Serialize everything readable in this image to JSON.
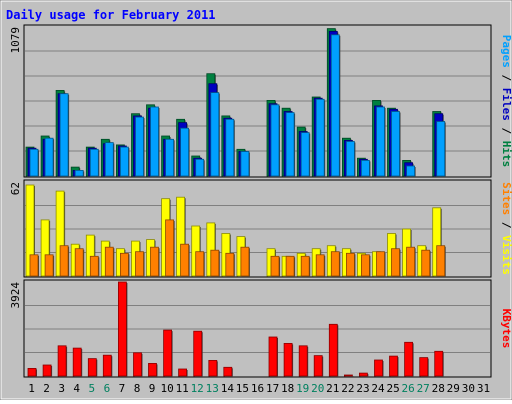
{
  "chart_data": {
    "type": "bar",
    "title": "Daily usage for February 2011",
    "categories": [
      "1",
      "2",
      "3",
      "4",
      "5",
      "6",
      "7",
      "8",
      "9",
      "10",
      "11",
      "12",
      "13",
      "14",
      "15",
      "16",
      "17",
      "18",
      "19",
      "20",
      "21",
      "22",
      "23",
      "24",
      "25",
      "26",
      "27",
      "28",
      "29",
      "30",
      "31"
    ],
    "weekend_days": [
      "5",
      "6",
      "12",
      "13",
      "19",
      "20",
      "26",
      "27"
    ],
    "grid": true,
    "panels": [
      {
        "ymax_label": "1079",
        "ylim": [
          0,
          1079
        ],
        "series": [
          {
            "name": "Hits",
            "color": "#008040",
            "values": [
              208,
              288,
              616,
              64,
              208,
              264,
              224,
              448,
              512,
              288,
              408,
              144,
              736,
              432,
              192,
              0,
              544,
              488,
              352,
              568,
              1060,
              272,
              128,
              544,
              488,
              112,
              0,
              464,
              0,
              0,
              0
            ]
          },
          {
            "name": "Files",
            "color": "#0000c0",
            "values": [
              200,
              264,
              592,
              40,
              200,
              232,
              216,
              432,
              488,
              264,
              384,
              128,
              664,
              416,
              176,
              0,
              520,
              464,
              320,
              560,
              1040,
              256,
              120,
              504,
              480,
              96,
              0,
              448,
              0,
              0,
              0
            ]
          },
          {
            "name": "Pages",
            "color": "#00a0ff",
            "values": [
              192,
              272,
              592,
              40,
              192,
              240,
              208,
              424,
              496,
              264,
              344,
              120,
              600,
              408,
              176,
              0,
              512,
              456,
              312,
              552,
              1016,
              248,
              112,
              496,
              464,
              72,
              0,
              392,
              0,
              0,
              0
            ]
          }
        ],
        "right_label": [
          "Pages",
          "Files",
          "Hits"
        ],
        "right_label_colors": [
          "#00a0ff",
          "#0000c0",
          "#008040"
        ]
      },
      {
        "ymax_label": "62",
        "ylim": [
          0,
          62
        ],
        "series": [
          {
            "name": "Visits",
            "color": "#ffff00",
            "values": [
              60,
              37,
              56,
              21,
              27,
              23,
              18,
              23,
              24,
              51,
              52,
              33,
              35,
              28,
              26,
              0,
              18,
              13,
              15,
              18,
              20,
              18,
              15,
              16,
              28,
              31,
              20,
              45,
              0,
              0,
              0
            ]
          },
          {
            "name": "Sites",
            "color": "#ff8000",
            "values": [
              14,
              14,
              20,
              18,
              13,
              19,
              15,
              16,
              19,
              37,
              21,
              16,
              17,
              15,
              19,
              0,
              13,
              13,
              13,
              14,
              16,
              15,
              14,
              16,
              18,
              19,
              17,
              20,
              0,
              0,
              0
            ]
          }
        ],
        "right_label": [
          "Sites",
          "Visits"
        ],
        "right_label_colors": [
          "#ff8000",
          "#ffff00"
        ]
      },
      {
        "ymax_label": "3924",
        "ylim": [
          0,
          3924
        ],
        "series": [
          {
            "name": "KBytes",
            "color": "#ff0000",
            "values": [
              316,
              460,
              1262,
              1165,
              728,
              870,
              3924,
              970,
              525,
              1917,
              292,
              1869,
              650,
              364,
              0,
              0,
              1626,
              1359,
              1262,
              850,
              2160,
              36,
              120,
              670,
              830,
              1408,
              770,
              1030,
              0,
              0,
              0
            ]
          }
        ],
        "right_label": [
          "KBytes"
        ],
        "right_label_colors": [
          "#ff0000"
        ]
      }
    ]
  }
}
